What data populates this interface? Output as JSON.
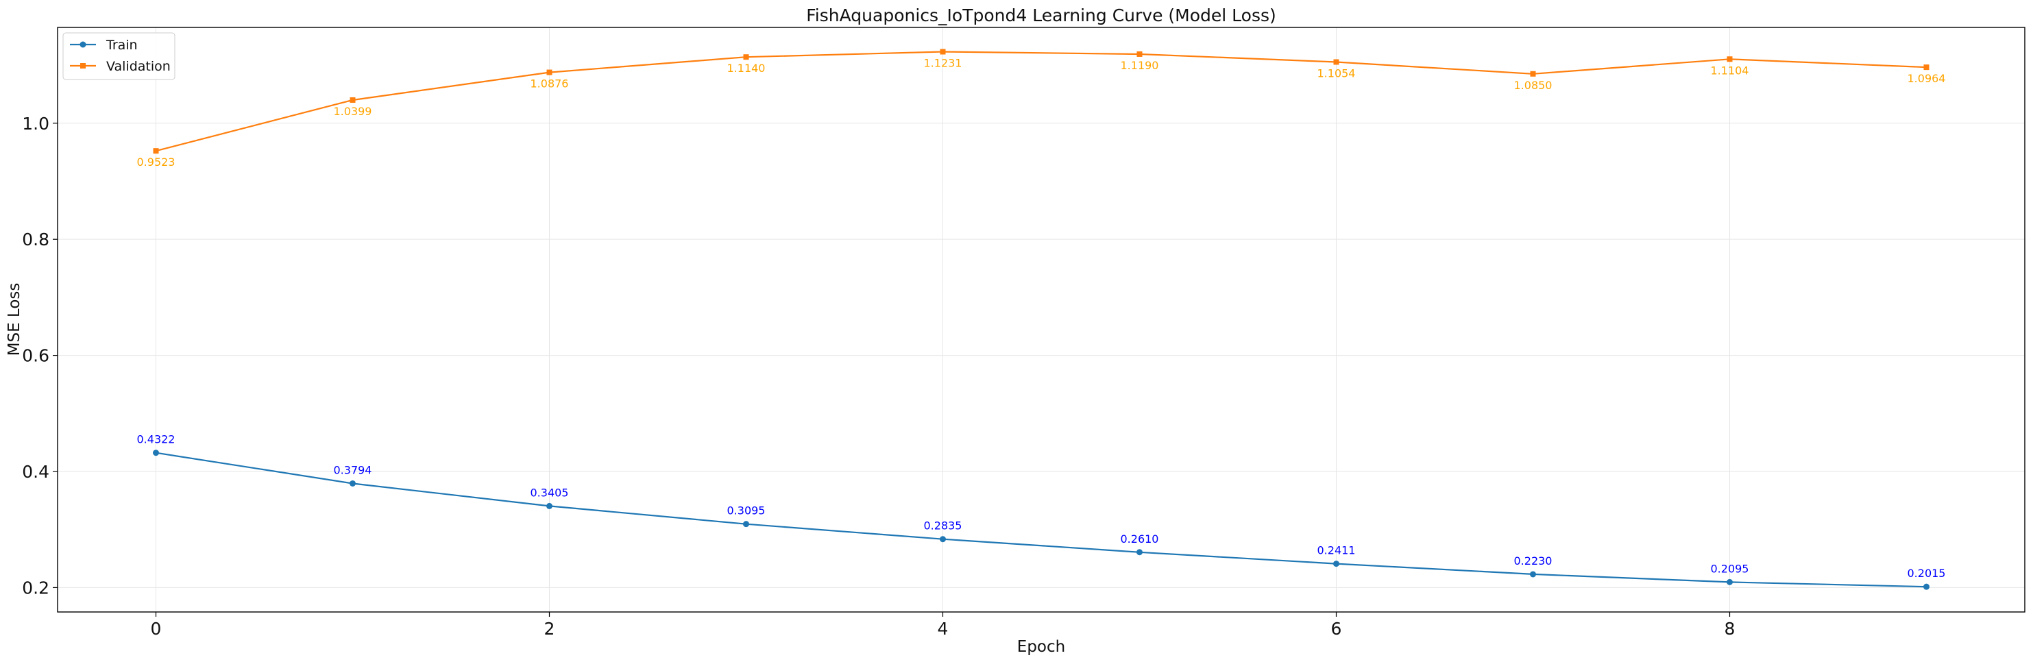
{
  "chart_data": {
    "type": "line",
    "title": "FishAquaponics_IoTpond4 Learning Curve (Model Loss)",
    "xlabel": "Epoch",
    "ylabel": "MSE Loss",
    "x": [
      0,
      1,
      2,
      3,
      4,
      5,
      6,
      7,
      8,
      9
    ],
    "xlim": [
      -0.5,
      9.5
    ],
    "ylim": [
      0.158,
      1.165
    ],
    "xticks": [
      0,
      2,
      4,
      6,
      8
    ],
    "yticks": [
      0.2,
      0.4,
      0.6,
      0.8,
      1.0
    ],
    "xtick_labels": [
      "0",
      "2",
      "4",
      "6",
      "8"
    ],
    "ytick_labels": [
      "0.2",
      "0.4",
      "0.6",
      "0.8",
      "1.0"
    ],
    "grid": true,
    "legend_position": "top-left",
    "series": [
      {
        "name": "Train",
        "color": "#1f77b4",
        "label_color": "#0000ff",
        "label_position": "above",
        "values": [
          0.4322,
          0.3794,
          0.3405,
          0.3095,
          0.2835,
          0.261,
          0.2411,
          0.223,
          0.2095,
          0.2015
        ],
        "labels": [
          "0.4322",
          "0.3794",
          "0.3405",
          "0.3095",
          "0.2835",
          "0.2610",
          "0.2411",
          "0.2230",
          "0.2095",
          "0.2015"
        ]
      },
      {
        "name": "Validation",
        "color": "#ff7f0e",
        "label_color": "#ffa500",
        "label_position": "below",
        "values": [
          0.9523,
          1.0399,
          1.0876,
          1.114,
          1.1231,
          1.119,
          1.1054,
          1.085,
          1.1104,
          1.0964
        ],
        "labels": [
          "0.9523",
          "1.0399",
          "1.0876",
          "1.1140",
          "1.1231",
          "1.1190",
          "1.1054",
          "1.0850",
          "1.1104",
          "1.0964"
        ]
      }
    ]
  }
}
